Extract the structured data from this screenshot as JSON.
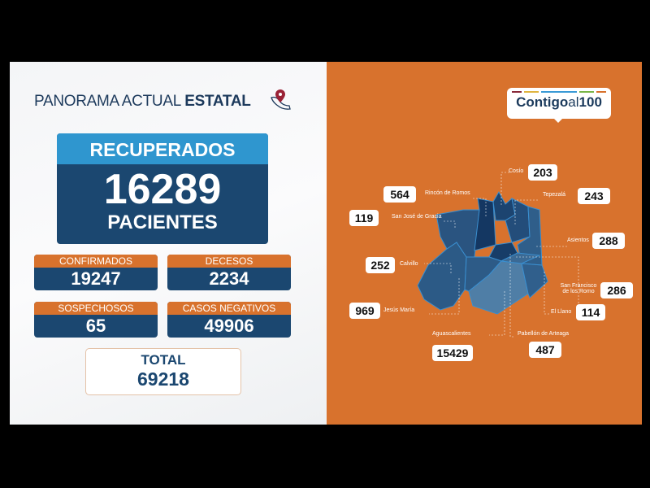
{
  "header": {
    "title_light": "PANORAMA ACTUAL",
    "title_bold": "ESTATAL",
    "icon": "map-pin-mexico-icon"
  },
  "recuperados": {
    "label": "RECUPERADOS",
    "value": "16289",
    "unit": "PACIENTES"
  },
  "stats": [
    {
      "label": "CONFIRMADOS",
      "value": "19247"
    },
    {
      "label": "DECESOS",
      "value": "2234"
    },
    {
      "label": "SOSPECHOSOS",
      "value": "65"
    },
    {
      "label": "CASOS NEGATIVOS",
      "value": "49906"
    }
  ],
  "total": {
    "label": "TOTAL",
    "value": "69218"
  },
  "logo": {
    "text_a": "Contigo",
    "text_b": "al",
    "text_c": "100",
    "bar_colors": [
      "#8a2a3a",
      "#e0b540",
      "#3a9ad6",
      "#7ab648",
      "#d8722d"
    ]
  },
  "colors": {
    "orange": "#d8722d",
    "navy": "#1b4770",
    "light_blue": "#2f96cf"
  },
  "municipios": [
    {
      "name": "Cosío",
      "value": "203"
    },
    {
      "name": "Rincón de Romos",
      "value": "564"
    },
    {
      "name": "Tepezalá",
      "value": "243"
    },
    {
      "name": "San José de Gracia",
      "value": "119"
    },
    {
      "name": "Asientos",
      "value": "288"
    },
    {
      "name": "Calvillo",
      "value": "252"
    },
    {
      "name": "San Francisco de los Romo",
      "value": "286"
    },
    {
      "name": "Jesús María",
      "value": "969"
    },
    {
      "name": "El Llano",
      "value": "114"
    },
    {
      "name": "Aguascalientes",
      "value": "15429"
    },
    {
      "name": "Pabellón de Arteaga",
      "value": "487"
    }
  ]
}
